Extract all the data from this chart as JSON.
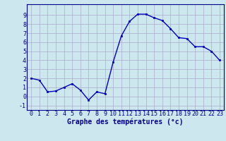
{
  "hours": [
    0,
    1,
    2,
    3,
    4,
    5,
    6,
    7,
    8,
    9,
    10,
    11,
    12,
    13,
    14,
    15,
    16,
    17,
    18,
    19,
    20,
    21,
    22,
    23
  ],
  "temps": [
    2,
    1.8,
    0.5,
    0.6,
    1.0,
    1.4,
    0.7,
    -0.4,
    0.5,
    0.3,
    3.8,
    6.7,
    8.3,
    9.1,
    9.1,
    8.7,
    8.4,
    7.5,
    6.5,
    6.4,
    5.5,
    5.5,
    5.0,
    4.0
  ],
  "xlabel": "Graphe des températures (°c)",
  "xlim": [
    -0.5,
    23.5
  ],
  "ylim": [
    -1.5,
    10.2
  ],
  "yticks": [
    -1,
    0,
    1,
    2,
    3,
    4,
    5,
    6,
    7,
    8,
    9
  ],
  "xticks": [
    0,
    1,
    2,
    3,
    4,
    5,
    6,
    7,
    8,
    9,
    10,
    11,
    12,
    13,
    14,
    15,
    16,
    17,
    18,
    19,
    20,
    21,
    22,
    23
  ],
  "line_color": "#0000bb",
  "marker": "s",
  "marker_size": 2.0,
  "bg_color": "#cce8ee",
  "grid_color": "#aaaacc",
  "axis_color": "#00008b",
  "xlabel_fontsize": 7.0,
  "tick_fontsize": 6.0,
  "linewidth": 1.0
}
